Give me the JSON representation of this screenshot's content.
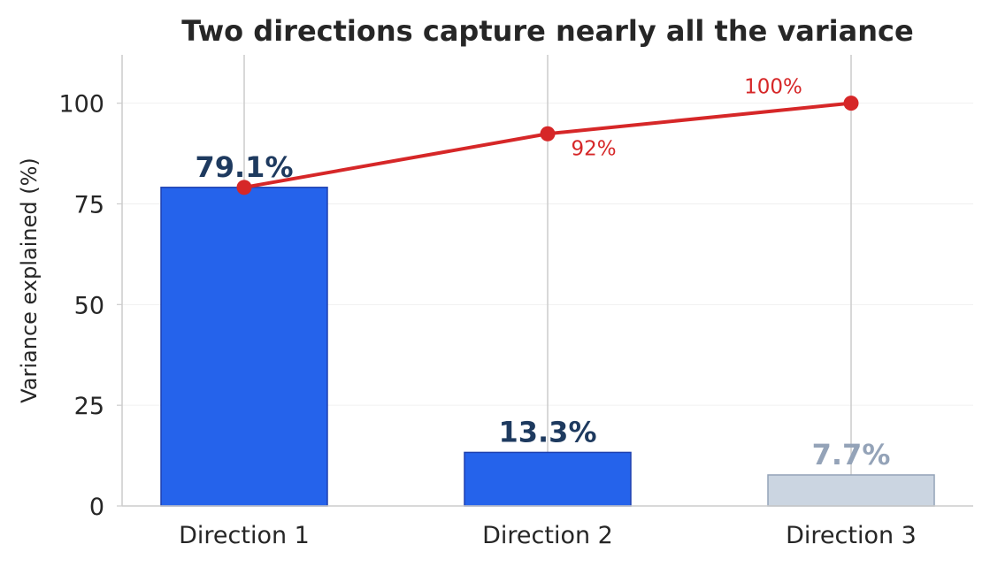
{
  "chart_data": {
    "type": "bar",
    "title": "Two directions capture nearly all the variance",
    "xlabel": "",
    "ylabel": "Variance explained (%)",
    "ylim": [
      0,
      112
    ],
    "yticks": [
      0,
      25,
      50,
      75,
      100
    ],
    "categories": [
      "Direction 1",
      "Direction 2",
      "Direction 3"
    ],
    "series": [
      {
        "type": "bar",
        "values": [
          79.1,
          13.3,
          7.7
        ],
        "labels": [
          "79.1%",
          "13.3%",
          "7.7%"
        ]
      },
      {
        "type": "line",
        "values": [
          79.1,
          92.4,
          100
        ],
        "labels": [
          "",
          "92%",
          "100%"
        ]
      }
    ],
    "grid": true,
    "colors": {
      "bar_highlight": "#2563eb",
      "bar_highlight_edge": "#1e40af",
      "bar_muted": "#cbd5e1",
      "bar_muted_edge": "#94a3b8",
      "label_highlight": "#1e3a5f",
      "label_muted": "#94a3b8",
      "cumulative_line": "#d62728"
    }
  }
}
